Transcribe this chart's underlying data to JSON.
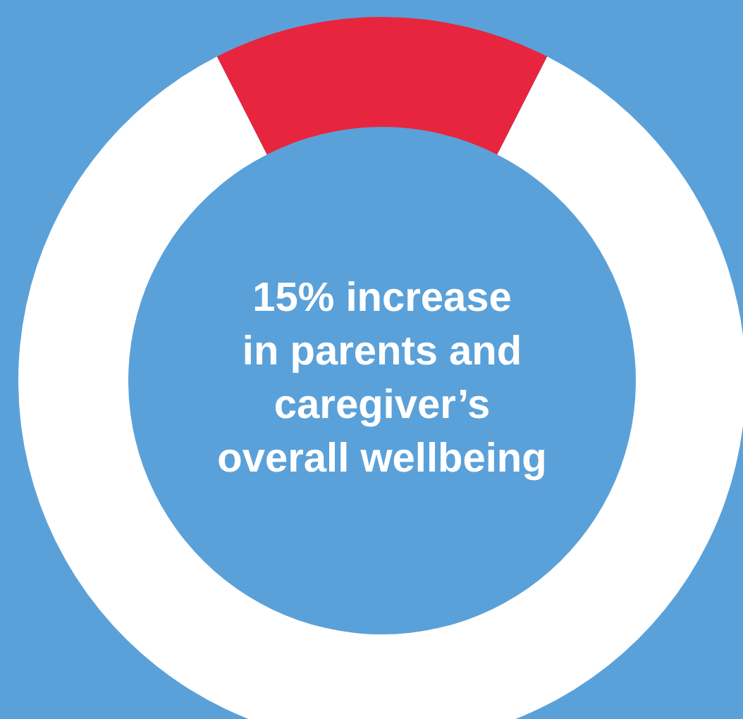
{
  "chart_data": {
    "type": "donut",
    "categories": [
      null,
      null
    ],
    "values": [
      15,
      85
    ],
    "colors": [
      "#e8253f",
      "#ffffff"
    ],
    "annotations": [
      "15% increase\nin parents and\ncaregiver’s\noverall wellbeing"
    ]
  }
}
